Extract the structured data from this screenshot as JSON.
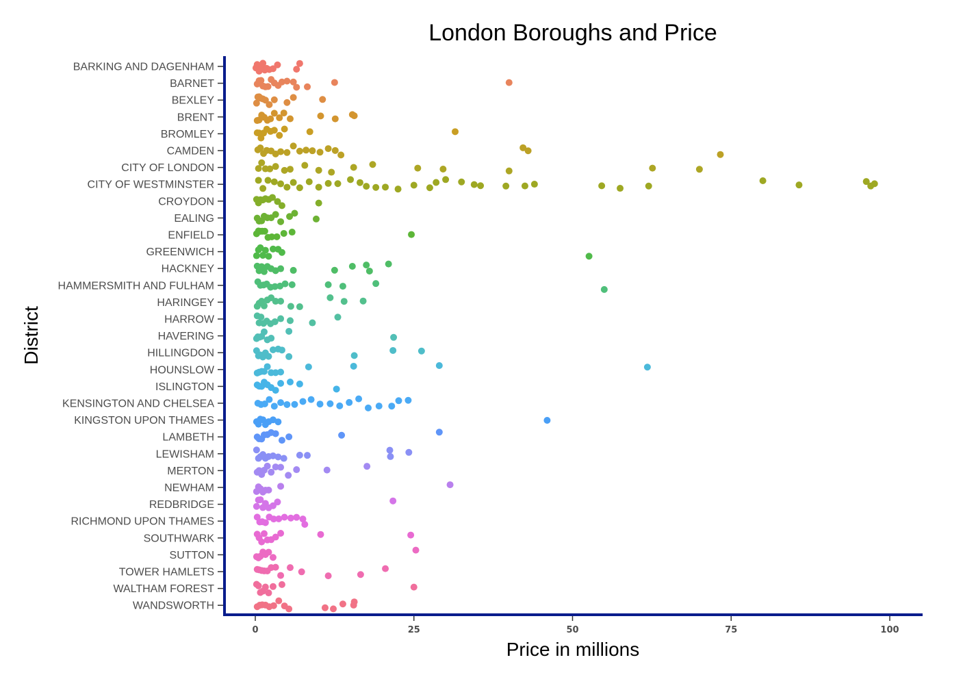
{
  "chart_data": {
    "type": "scatter",
    "title": "London Boroughs and Price",
    "xlabel": "Price in millions",
    "ylabel": "District",
    "xlim": [
      -5,
      105
    ],
    "xticks": [
      0,
      25,
      50,
      75,
      100
    ],
    "grid": false,
    "legend": "none",
    "axis_color": "#081c8c",
    "categories": [
      "BARKING AND DAGENHAM",
      "BARNET",
      "BEXLEY",
      "BRENT",
      "BROMLEY",
      "CAMDEN",
      "CITY OF LONDON",
      "CITY OF WESTMINSTER",
      "CROYDON",
      "EALING",
      "ENFIELD",
      "GREENWICH",
      "HACKNEY",
      "HAMMERSMITH AND FULHAM",
      "HARINGEY",
      "HARROW",
      "HAVERING",
      "HILLINGDON",
      "HOUNSLOW",
      "ISLINGTON",
      "KENSINGTON AND CHELSEA",
      "KINGSTON UPON THAMES",
      "LAMBETH",
      "LEWISHAM",
      "MERTON",
      "NEWHAM",
      "REDBRIDGE",
      "RICHMOND UPON THAMES",
      "SOUTHWARK",
      "SUTTON",
      "TOWER HAMLETS",
      "WALTHAM FOREST",
      "WANDSWORTH"
    ],
    "colors": [
      "#f0776d",
      "#e8845c",
      "#de8e44",
      "#d3952f",
      "#c99e24",
      "#bca126",
      "#ada625",
      "#9ea823",
      "#84ae2a",
      "#6db234",
      "#5db638",
      "#50ba4a",
      "#4fbd66",
      "#4fbf7a",
      "#53c08d",
      "#53c0a2",
      "#52bfb6",
      "#4fbdc9",
      "#4bb9da",
      "#45b4e8",
      "#4aaaf5",
      "#4a9ff6",
      "#5f95f8",
      "#8a90f5",
      "#a38af2",
      "#b980ed",
      "#d475e8",
      "#e26ee0",
      "#e86ad2",
      "#ec6bc3",
      "#ef6cb0",
      "#f06e9c",
      "#f17286"
    ],
    "series": [
      {
        "district": "BARKING AND DAGENHAM",
        "x": [
          0.1,
          0.3,
          0.5,
          0.6,
          0.8,
          1.0,
          1.2,
          1.5,
          1.8,
          2.2,
          2.8,
          3.5,
          6.5,
          7.0
        ]
      },
      {
        "district": "BARNET",
        "x": [
          0.3,
          0.6,
          0.9,
          1.2,
          1.6,
          2.0,
          2.5,
          3.0,
          3.6,
          4.2,
          5.0,
          6.0,
          6.5,
          8.2,
          12.5,
          40.0
        ]
      },
      {
        "district": "BEXLEY",
        "x": [
          0.2,
          0.4,
          0.6,
          0.9,
          1.2,
          1.6,
          2.2,
          3.0,
          5.0,
          6.0,
          10.6
        ]
      },
      {
        "district": "BRENT",
        "x": [
          0.3,
          0.6,
          1.0,
          1.4,
          1.9,
          2.4,
          3.0,
          3.8,
          4.5,
          5.5,
          10.3,
          12.6,
          15.3,
          15.6
        ]
      },
      {
        "district": "BROMLEY",
        "x": [
          0.3,
          0.6,
          0.9,
          1.3,
          1.8,
          2.4,
          3.0,
          3.8,
          4.6,
          8.6,
          31.5
        ]
      },
      {
        "district": "CAMDEN",
        "x": [
          0.4,
          0.8,
          1.3,
          1.8,
          2.5,
          3.2,
          4.0,
          5.0,
          6.0,
          7.0,
          8.0,
          9.0,
          10.2,
          11.5,
          12.6,
          13.5,
          42.2,
          43.0,
          73.3
        ]
      },
      {
        "district": "CITY OF LONDON",
        "x": [
          0.5,
          1.0,
          1.6,
          2.3,
          3.2,
          4.6,
          5.5,
          7.8,
          10.0,
          12.0,
          15.5,
          18.5,
          25.6,
          29.6,
          40.0,
          62.6,
          70.0
        ]
      },
      {
        "district": "CITY OF WESTMINSTER",
        "x": [
          0.5,
          1.2,
          2.0,
          3.0,
          4.0,
          5.0,
          6.0,
          7.0,
          8.5,
          10.0,
          11.5,
          13.0,
          15.0,
          16.5,
          17.5,
          19.0,
          20.5,
          22.5,
          25.0,
          27.5,
          28.5,
          30.0,
          32.5,
          34.5,
          35.5,
          39.5,
          42.5,
          44.0,
          54.6,
          57.5,
          62.0,
          80.0,
          85.7,
          96.3,
          97.0,
          97.6
        ]
      },
      {
        "district": "CROYDON",
        "x": [
          0.2,
          0.5,
          0.8,
          1.2,
          1.6,
          2.1,
          2.7,
          3.5,
          4.2,
          10.0
        ]
      },
      {
        "district": "EALING",
        "x": [
          0.3,
          0.6,
          1.0,
          1.4,
          1.9,
          2.5,
          3.2,
          4.0,
          5.4,
          6.2,
          9.6
        ]
      },
      {
        "district": "ENFIELD",
        "x": [
          0.2,
          0.5,
          0.8,
          1.1,
          1.5,
          2.0,
          2.6,
          3.4,
          4.5,
          5.8,
          24.6
        ]
      },
      {
        "district": "GREENWICH",
        "x": [
          0.2,
          0.5,
          0.8,
          1.2,
          1.6,
          2.1,
          2.8,
          3.6,
          4.2,
          52.6
        ]
      },
      {
        "district": "HACKNEY",
        "x": [
          0.3,
          0.6,
          1.0,
          1.4,
          1.9,
          2.5,
          3.2,
          4.0,
          6.0,
          12.5,
          15.3,
          17.5,
          18.0,
          21.0
        ]
      },
      {
        "district": "HAMMERSMITH AND FULHAM",
        "x": [
          0.4,
          0.8,
          1.3,
          1.8,
          2.4,
          3.1,
          3.9,
          4.7,
          5.8,
          11.5,
          13.8,
          19.0,
          55.0
        ]
      },
      {
        "district": "HARINGEY",
        "x": [
          0.3,
          0.6,
          1.0,
          1.4,
          1.9,
          2.5,
          3.2,
          4.0,
          5.6,
          7.0,
          11.8,
          14.0,
          17.0
        ]
      },
      {
        "district": "HARROW",
        "x": [
          0.3,
          0.6,
          0.9,
          1.3,
          1.8,
          2.4,
          3.1,
          4.0,
          5.5,
          9.0,
          13.0
        ]
      },
      {
        "district": "HAVERING",
        "x": [
          0.2,
          0.4,
          0.7,
          1.0,
          1.4,
          1.9,
          2.5,
          5.3,
          21.8
        ]
      },
      {
        "district": "HILLINGDON",
        "x": [
          0.2,
          0.5,
          0.8,
          1.2,
          1.6,
          2.1,
          2.8,
          3.6,
          4.2,
          5.3,
          15.6,
          21.7,
          26.2
        ]
      },
      {
        "district": "HOUNSLOW",
        "x": [
          0.3,
          0.6,
          1.0,
          1.4,
          1.9,
          2.5,
          3.2,
          4.0,
          8.4,
          15.5,
          29.0,
          61.8
        ]
      },
      {
        "district": "ISLINGTON",
        "x": [
          0.3,
          0.6,
          1.0,
          1.4,
          1.9,
          2.5,
          3.2,
          4.0,
          5.5,
          7.0,
          12.8
        ]
      },
      {
        "district": "KENSINGTON AND CHELSEA",
        "x": [
          0.4,
          0.9,
          1.5,
          2.2,
          3.0,
          4.0,
          5.0,
          6.2,
          7.5,
          8.8,
          10.2,
          11.8,
          13.3,
          14.8,
          16.3,
          17.8,
          19.5,
          21.5,
          22.6,
          24.1
        ]
      },
      {
        "district": "KINGSTON UPON THAMES",
        "x": [
          0.2,
          0.5,
          0.8,
          1.2,
          1.6,
          2.1,
          2.8,
          3.6,
          46.0
        ]
      },
      {
        "district": "LAMBETH",
        "x": [
          0.3,
          0.6,
          1.0,
          1.4,
          1.9,
          2.5,
          3.2,
          4.2,
          5.3,
          13.6,
          29.0
        ]
      },
      {
        "district": "LEWISHAM",
        "x": [
          0.2,
          0.5,
          0.8,
          1.2,
          1.6,
          2.1,
          2.8,
          3.6,
          4.5,
          7.0,
          8.2,
          21.2,
          21.3,
          24.2
        ]
      },
      {
        "district": "MERTON",
        "x": [
          0.3,
          0.6,
          1.0,
          1.4,
          1.9,
          2.5,
          3.2,
          4.0,
          5.2,
          6.5,
          11.3,
          17.6
        ]
      },
      {
        "district": "NEWHAM",
        "x": [
          0.2,
          0.5,
          0.8,
          1.2,
          1.6,
          2.1,
          4.0,
          30.7
        ]
      },
      {
        "district": "REDBRIDGE",
        "x": [
          0.2,
          0.5,
          0.8,
          1.2,
          1.6,
          2.1,
          2.8,
          3.5,
          21.7
        ]
      },
      {
        "district": "RICHMOND UPON THAMES",
        "x": [
          0.3,
          0.7,
          1.1,
          1.6,
          2.2,
          2.9,
          3.7,
          4.6,
          5.6,
          6.5,
          7.5,
          7.8
        ]
      },
      {
        "district": "SOUTHWARK",
        "x": [
          0.3,
          0.6,
          1.0,
          1.4,
          1.9,
          2.5,
          3.2,
          4.0,
          10.3,
          24.5
        ]
      },
      {
        "district": "SUTTON",
        "x": [
          0.2,
          0.5,
          0.8,
          1.2,
          1.6,
          2.1,
          2.8,
          25.3
        ]
      },
      {
        "district": "TOWER HAMLETS",
        "x": [
          0.3,
          0.6,
          1.0,
          1.4,
          1.9,
          2.5,
          3.2,
          4.0,
          5.5,
          7.3,
          11.5,
          16.6,
          20.5
        ]
      },
      {
        "district": "WALTHAM FOREST",
        "x": [
          0.2,
          0.5,
          0.8,
          1.2,
          1.6,
          2.1,
          2.8,
          4.2,
          25.0
        ]
      },
      {
        "district": "WANDSWORTH",
        "x": [
          0.3,
          0.7,
          1.1,
          1.6,
          2.2,
          2.9,
          3.7,
          4.6,
          5.3,
          11.0,
          12.3,
          13.8,
          15.5,
          15.6
        ]
      }
    ]
  }
}
